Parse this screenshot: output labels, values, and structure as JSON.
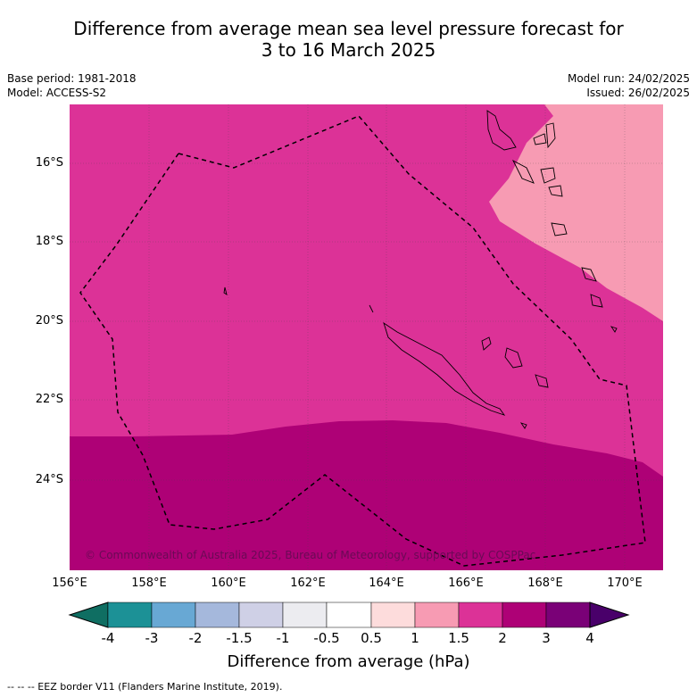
{
  "title_line1": "Difference from average mean sea level pressure forecast for",
  "title_line2": "3 to 16 March 2025",
  "meta": {
    "base_period": "Base period: 1981-2018",
    "model": "Model: ACCESS-S2",
    "model_run": "Model run: 24/02/2025",
    "issued": "Issued: 26/02/2025"
  },
  "copyright": "© Commonwealth of Australia 2025, Bureau of Meteorology, supported by COSPPac",
  "axes": {
    "lon_ticks": [
      "156°E",
      "158°E",
      "160°E",
      "162°E",
      "164°E",
      "166°E",
      "168°E",
      "170°E"
    ],
    "lat_ticks": [
      "16°S",
      "18°S",
      "20°S",
      "22°S",
      "24°S"
    ]
  },
  "colorbar": {
    "ticks": [
      "-4",
      "-3",
      "-2",
      "-1.5",
      "-1",
      "-0.5",
      "0.5",
      "1",
      "1.5",
      "2",
      "3",
      "4"
    ],
    "colors": [
      "#0f6e62",
      "#1c9196",
      "#68a8d4",
      "#a5b8dc",
      "#cfd0e6",
      "#ececf0",
      "#ffffff",
      "#fddcdc",
      "#f79bb3",
      "#dc3297",
      "#ae0176",
      "#7a0177",
      "#49006a"
    ],
    "label": "Difference from average (hPa)"
  },
  "legend_footer": "--  --  -- EEZ border V11 (Flanders Marine Institute, 2019).",
  "map_regions": [
    {
      "name": "1.5 to 2 hPa",
      "color": "#dc3297"
    },
    {
      "name": "2 to 3 hPa",
      "color": "#ae0176"
    },
    {
      "name": "1 to 1.5 hPa",
      "color": "#f79bb3"
    }
  ]
}
